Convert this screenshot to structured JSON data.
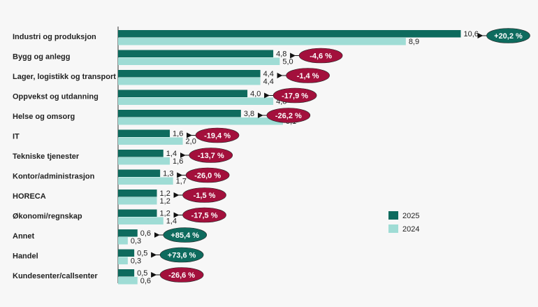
{
  "chart_data": {
    "type": "bar",
    "orientation": "horizontal",
    "categories": [
      "Industri og produksjon",
      "Bygg og anlegg",
      "Lager, logistikk og transport",
      "Oppvekst og utdanning",
      "Helse og omsorg",
      "IT",
      "Tekniske tjenester",
      "Kontor/administrasjon",
      "HORECA",
      "Økonomi/regnskap",
      "Annet",
      "Handel",
      "Kundesenter/callsenter"
    ],
    "series": [
      {
        "name": "2025",
        "color": "#0e6b5e",
        "values": [
          10.6,
          4.8,
          4.4,
          4.0,
          3.8,
          1.6,
          1.4,
          1.3,
          1.2,
          1.2,
          0.6,
          0.5,
          0.5
        ],
        "value_labels": [
          "10,6",
          "4,8",
          "4,4",
          "4,0",
          "3,8",
          "1,6",
          "1,4",
          "1,3",
          "1,2",
          "1,2",
          "0,6",
          "0,5",
          "0,5"
        ]
      },
      {
        "name": "2024",
        "color": "#9fdcd5",
        "values": [
          8.9,
          5.0,
          4.4,
          4.8,
          5.1,
          2.0,
          1.6,
          1.7,
          1.2,
          1.4,
          0.3,
          0.3,
          0.6
        ],
        "value_labels": [
          "8,9",
          "5,0",
          "4,4",
          "4,8",
          "5,1",
          "2,0",
          "1,6",
          "1,7",
          "1,2",
          "1,4",
          "0,3",
          "0,3",
          "0,6"
        ]
      }
    ],
    "changes": [
      {
        "value": 20.2,
        "label": "+20,2 %"
      },
      {
        "value": -4.6,
        "label": "-4,6 %"
      },
      {
        "value": -1.4,
        "label": "-1,4 %"
      },
      {
        "value": -17.9,
        "label": "-17,9 %"
      },
      {
        "value": -26.2,
        "label": "-26,2 %"
      },
      {
        "value": -19.4,
        "label": "-19,4 %"
      },
      {
        "value": -13.7,
        "label": "-13,7 %"
      },
      {
        "value": -26.0,
        "label": "-26,0 %"
      },
      {
        "value": -1.5,
        "label": "-1,5 %"
      },
      {
        "value": -17.5,
        "label": "-17,5 %"
      },
      {
        "value": 85.4,
        "label": "+85,4 %"
      },
      {
        "value": 73.6,
        "label": "+73,6 %"
      },
      {
        "value": -26.6,
        "label": "-26,6 %"
      }
    ],
    "change_colors": {
      "increase": "#0e6b5e",
      "decrease": "#a3103c"
    },
    "xlim": [
      0,
      11
    ],
    "legend": "right"
  }
}
